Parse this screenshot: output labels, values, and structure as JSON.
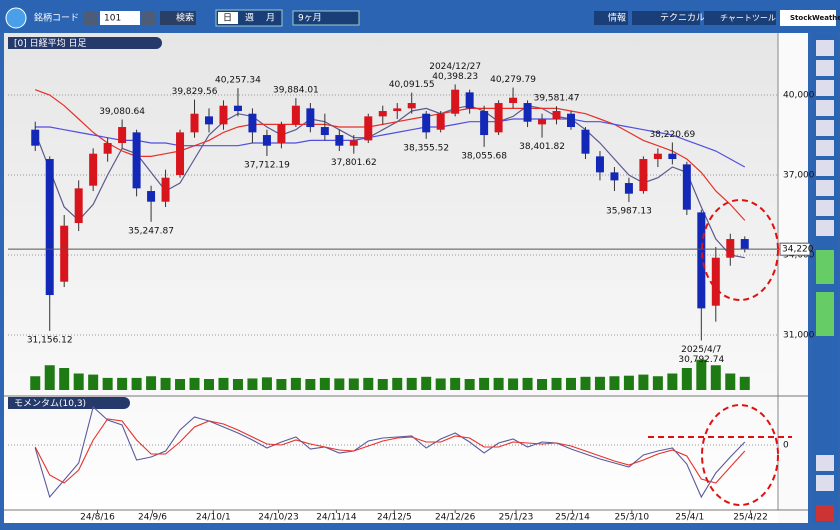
{
  "toolbar": {
    "code_label": "銘柄コード",
    "code": "101",
    "search": "検索",
    "periods": [
      "日",
      "週",
      "月"
    ],
    "range": "9ヶ月",
    "info": "情報",
    "technical": "テクニカル",
    "chart_tool": "チャートツール",
    "brand": "StockWeather"
  },
  "chart_data": {
    "type": "candlestick",
    "title": "[0] 日経平均 日足",
    "xlim": [
      -0.5,
      49.5
    ],
    "xticks": [
      {
        "value": 4.3,
        "label": "24/8/16"
      },
      {
        "value": 8.1,
        "label": "24/9/6"
      },
      {
        "value": 12.3,
        "label": "24/10/1"
      },
      {
        "value": 16.8,
        "label": "24/10/23"
      },
      {
        "value": 20.8,
        "label": "24/11/14"
      },
      {
        "value": 24.8,
        "label": "24/12/5"
      },
      {
        "value": 29,
        "label": "24/12/26"
      },
      {
        "value": 33.2,
        "label": "25/1/23"
      },
      {
        "value": 37.1,
        "label": "25/2/14"
      },
      {
        "value": 41.2,
        "label": "25/3/10"
      },
      {
        "value": 45.2,
        "label": "25/4/1"
      },
      {
        "value": 49.4,
        "label": "25/4/22"
      }
    ],
    "ylim": [
      28800,
      42000
    ],
    "yticks": [
      {
        "value": 31000,
        "label": "31,000"
      },
      {
        "value": 34000,
        "label": "34,000"
      },
      {
        "value": 37000,
        "label": "37,000"
      },
      {
        "value": 40000,
        "label": "40,000"
      }
    ],
    "grid": true,
    "up_color": "#d8141c",
    "down_color": "#1428b8",
    "ohlc": [
      [
        38700,
        39000,
        37900,
        38100
      ],
      [
        37600,
        37700,
        31156.12,
        32500
      ],
      [
        33000,
        35500,
        32800,
        35100
      ],
      [
        35200,
        36800,
        34900,
        36500
      ],
      [
        36600,
        38000,
        36400,
        37800
      ],
      [
        37800,
        38400,
        37500,
        38200
      ],
      [
        38200,
        39080.64,
        38000,
        38800
      ],
      [
        38600,
        38700,
        36200,
        36500
      ],
      [
        36400,
        36600,
        35247.87,
        36000
      ],
      [
        36000,
        37200,
        35800,
        36900
      ],
      [
        37000,
        38700,
        36900,
        38600
      ],
      [
        38600,
        39829.56,
        38400,
        39300
      ],
      [
        39200,
        39500,
        38600,
        38900
      ],
      [
        38900,
        39800,
        38700,
        39600
      ],
      [
        39600,
        40257.34,
        39200,
        39400
      ],
      [
        39300,
        39500,
        38200,
        38600
      ],
      [
        38500,
        38700,
        37712.19,
        38100
      ],
      [
        38200,
        39000,
        38000,
        38900
      ],
      [
        38900,
        39884.01,
        38800,
        39600
      ],
      [
        39500,
        39700,
        38600,
        38800
      ],
      [
        38800,
        39300,
        38300,
        38500
      ],
      [
        38500,
        38700,
        37900,
        38100
      ],
      [
        38100,
        38500,
        37801.62,
        38300
      ],
      [
        38300,
        39300,
        38200,
        39200
      ],
      [
        39200,
        39600,
        38900,
        39400
      ],
      [
        39400,
        39700,
        39100,
        39500
      ],
      [
        39500,
        40091.55,
        39300,
        39700
      ],
      [
        39300,
        39400,
        38355.52,
        38600
      ],
      [
        38700,
        39400,
        38600,
        39300
      ],
      [
        39300,
        40398.23,
        39200,
        40200
      ],
      [
        40100,
        40200,
        39300,
        39500
      ],
      [
        39400,
        39600,
        38055.68,
        38500
      ],
      [
        38600,
        39800,
        38500,
        39700
      ],
      [
        39700,
        40279.79,
        39500,
        39900
      ],
      [
        39700,
        39800,
        38800,
        39000
      ],
      [
        38900,
        39300,
        38401.82,
        39100
      ],
      [
        39100,
        39581.47,
        38900,
        39400
      ],
      [
        39300,
        39400,
        38700,
        38800
      ],
      [
        38700,
        38800,
        37600,
        37800
      ],
      [
        37700,
        37900,
        36800,
        37100
      ],
      [
        37100,
        37300,
        36400,
        36800
      ],
      [
        36700,
        36900,
        35987.13,
        36300
      ],
      [
        36400,
        37700,
        36300,
        37600
      ],
      [
        37600,
        38000,
        37300,
        37800
      ],
      [
        37800,
        38220.69,
        37400,
        37600
      ],
      [
        37400,
        37500,
        35500,
        35700
      ],
      [
        35600,
        35700,
        30792.74,
        32000
      ],
      [
        32100,
        34300,
        31500,
        33900
      ],
      [
        33900,
        34800,
        33600,
        34600
      ],
      [
        34600,
        34700,
        34100,
        34220
      ]
    ],
    "series": [
      {
        "color": "#5a5a8c",
        "values": [
          38600,
          37200,
          35800,
          35300,
          35900,
          37000,
          38000,
          37800,
          37100,
          36400,
          36700,
          37600,
          38500,
          39000,
          39300,
          39200,
          38800,
          38500,
          38700,
          39100,
          39000,
          38700,
          38400,
          38400,
          38700,
          39000,
          39400,
          39500,
          39300,
          39500,
          39600,
          39400,
          39000,
          39200,
          39600,
          39500,
          39200,
          39100,
          38700,
          38200,
          37600,
          37000,
          36700,
          36900,
          37300,
          37100,
          35800,
          34600,
          34000,
          33900
        ]
      },
      {
        "color": "#e8302a",
        "values": [
          40200,
          40000,
          39600,
          39100,
          38600,
          38200,
          37900,
          37700,
          37700,
          37800,
          37900,
          38100,
          38300,
          38600,
          38800,
          38900,
          38900,
          38900,
          38900,
          38900,
          38900,
          38800,
          38800,
          38800,
          38900,
          39000,
          39100,
          39200,
          39300,
          39400,
          39500,
          39500,
          39500,
          39500,
          39500,
          39500,
          39500,
          39400,
          39300,
          39100,
          38900,
          38600,
          38300,
          38100,
          37900,
          37600,
          37100,
          36400,
          35900,
          35300
        ]
      },
      {
        "color": "#5050e0",
        "values": [
          38800,
          38800,
          38700,
          38600,
          38500,
          38400,
          38300,
          38300,
          38200,
          38200,
          38100,
          38100,
          38100,
          38100,
          38100,
          38200,
          38200,
          38200,
          38200,
          38300,
          38300,
          38300,
          38300,
          38400,
          38500,
          38600,
          38700,
          38800,
          38800,
          38900,
          39000,
          39000,
          39000,
          39100,
          39100,
          39100,
          39100,
          39100,
          39000,
          39000,
          38900,
          38800,
          38700,
          38600,
          38500,
          38300,
          38100,
          37900,
          37600,
          37300
        ]
      }
    ],
    "annotations": [
      {
        "x": 1,
        "y": 31156.12,
        "label": "31,156.12"
      },
      {
        "x": 6,
        "y": 39080.64,
        "label": "39,080.64"
      },
      {
        "x": 8,
        "y": 35247.87,
        "label": "35,247.87"
      },
      {
        "x": 11,
        "y": 39829.56,
        "label": "39,829.56"
      },
      {
        "x": 14,
        "y": 40257.34,
        "label": "40,257.34"
      },
      {
        "x": 16,
        "y": 37712.19,
        "label": "37,712.19"
      },
      {
        "x": 18,
        "y": 39884.01,
        "label": "39,884.01"
      },
      {
        "x": 22,
        "y": 37801.62,
        "label": "37,801.62"
      },
      {
        "x": 26,
        "y": 40091.55,
        "label": "40,091.55"
      },
      {
        "x": 27,
        "y": 38355.52,
        "label": "38,355.52"
      },
      {
        "x": 29,
        "y": 40398.23,
        "label": "40,398.23",
        "date": "2024/12/27"
      },
      {
        "x": 31,
        "y": 38055.68,
        "label": "38,055.68"
      },
      {
        "x": 33,
        "y": 40279.79,
        "label": "40,279.79"
      },
      {
        "x": 35,
        "y": 38401.82,
        "label": "38,401.82"
      },
      {
        "x": 36,
        "y": 39581.47,
        "label": "39,581.47"
      },
      {
        "x": 41,
        "y": 35987.13,
        "label": "35,987.13"
      },
      {
        "x": 44,
        "y": 38220.69,
        "label": "38,220.69"
      },
      {
        "x": 46,
        "y": 30792.74,
        "label": "30,792.74",
        "date": "2025/4/7"
      }
    ],
    "last_price": {
      "value": 34220,
      "label": "34,220"
    },
    "volume": {
      "color": "#1e7a12",
      "ylim": [
        0,
        100
      ],
      "values": [
        25,
        45,
        40,
        30,
        28,
        22,
        22,
        22,
        25,
        22,
        20,
        22,
        20,
        22,
        20,
        21,
        23,
        20,
        22,
        20,
        22,
        21,
        21,
        22,
        20,
        22,
        22,
        24,
        21,
        22,
        20,
        22,
        22,
        21,
        22,
        20,
        22,
        22,
        24,
        24,
        25,
        26,
        28,
        25,
        30,
        40,
        55,
        45,
        30,
        24
      ]
    },
    "momentum": {
      "title": "モメンタム(10,3)",
      "ylim": [
        -6000,
        4000
      ],
      "yticks": [
        0
      ],
      "series": [
        {
          "color": "#5a5a9c",
          "values": [
            -300,
            -5200,
            -3500,
            -1800,
            3800,
            2500,
            2000,
            -1500,
            -1200,
            -600,
            1500,
            2800,
            2400,
            1800,
            1200,
            500,
            -300,
            300,
            800,
            -400,
            -200,
            -800,
            -600,
            400,
            700,
            800,
            900,
            -300,
            600,
            1200,
            300,
            -800,
            200,
            600,
            -200,
            300,
            200,
            -400,
            -900,
            -1400,
            -1800,
            -2200,
            -1000,
            -600,
            -300,
            -1900,
            -5200,
            -2800,
            -1200,
            300
          ]
        },
        {
          "color": "#e8302a",
          "values": [
            -200,
            -3000,
            -3800,
            -2500,
            500,
            2600,
            2400,
            500,
            -900,
            -900,
            300,
            1800,
            2400,
            2100,
            1500,
            800,
            100,
            0,
            500,
            100,
            -200,
            -500,
            -600,
            -100,
            400,
            700,
            800,
            300,
            300,
            900,
            700,
            -200,
            -200,
            300,
            200,
            100,
            200,
            -100,
            -600,
            -1100,
            -1600,
            -2000,
            -1500,
            -900,
            -500,
            -1100,
            -3400,
            -3800,
            -2200,
            -600
          ]
        }
      ]
    }
  }
}
